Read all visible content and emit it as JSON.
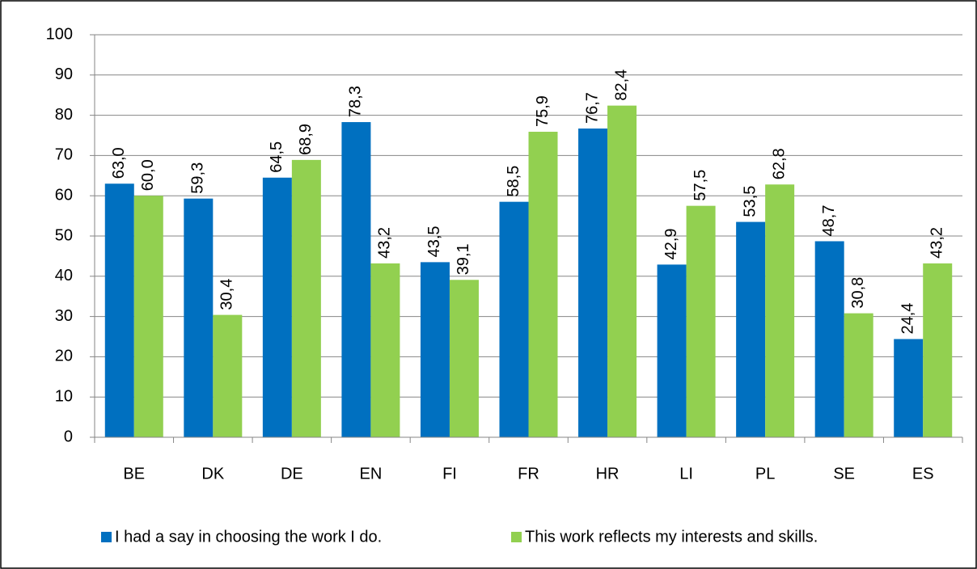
{
  "chart_data": {
    "type": "bar",
    "categories": [
      "BE",
      "DK",
      "DE",
      "EN",
      "FI",
      "FR",
      "HR",
      "LI",
      "PL",
      "SE",
      "ES"
    ],
    "series": [
      {
        "name": "I had a say in choosing the work I do.",
        "color": "#0070c0",
        "values": [
          63.0,
          59.3,
          64.5,
          78.3,
          43.5,
          58.5,
          76.7,
          42.9,
          53.5,
          48.7,
          24.4
        ],
        "value_labels": [
          "63,0",
          "59,3",
          "64,5",
          "78,3",
          "43,5",
          "58,5",
          "76,7",
          "42,9",
          "53,5",
          "48,7",
          "24,4"
        ]
      },
      {
        "name": "This work reflects my interests and skills.",
        "color": "#92d050",
        "values": [
          60.0,
          30.4,
          68.9,
          43.2,
          39.1,
          75.9,
          82.4,
          57.5,
          62.8,
          30.8,
          43.2
        ],
        "value_labels": [
          "60,0",
          "30,4",
          "68,9",
          "43,2",
          "39,1",
          "75,9",
          "82,4",
          "57,5",
          "62,8",
          "30,8",
          "43,2"
        ]
      }
    ],
    "ylim": [
      0,
      100
    ],
    "yticks": [
      0,
      10,
      20,
      30,
      40,
      50,
      60,
      70,
      80,
      90,
      100
    ],
    "grid": true
  }
}
